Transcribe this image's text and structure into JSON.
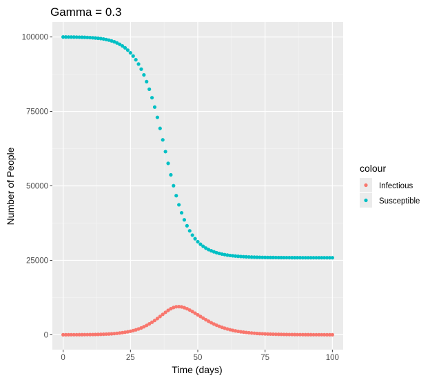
{
  "chart_data": {
    "type": "scatter",
    "title": "Gamma = 0.3",
    "xlabel": "Time (days)",
    "ylabel": "Number of People",
    "xlim": [
      -4,
      104
    ],
    "ylim": [
      -5000,
      105000
    ],
    "x_ticks": [
      0,
      25,
      50,
      75,
      100
    ],
    "y_ticks": [
      0,
      25000,
      50000,
      75000,
      100000
    ],
    "x_tick_labels": [
      "0",
      "25",
      "50",
      "75",
      "100"
    ],
    "y_tick_labels": [
      "0",
      "25000",
      "50000",
      "75000",
      "100000"
    ],
    "grid": true,
    "legend": {
      "title": "colour",
      "position": "right",
      "entries": [
        "Infectious",
        "Susceptible"
      ]
    },
    "series": [
      {
        "name": "Infectious",
        "color": "#f8766d",
        "x": [
          0,
          1,
          2,
          3,
          4,
          5,
          6,
          7,
          8,
          9,
          10,
          11,
          12,
          13,
          14,
          15,
          16,
          17,
          18,
          19,
          20,
          21,
          22,
          23,
          24,
          25,
          26,
          27,
          28,
          29,
          30,
          31,
          32,
          33,
          34,
          35,
          36,
          37,
          38,
          39,
          40,
          41,
          42,
          43,
          44,
          45,
          46,
          47,
          48,
          49,
          50,
          51,
          52,
          53,
          54,
          55,
          56,
          57,
          58,
          59,
          60,
          61,
          62,
          63,
          64,
          65,
          66,
          67,
          68,
          69,
          70,
          71,
          72,
          73,
          74,
          75,
          76,
          77,
          78,
          79,
          80,
          81,
          82,
          83,
          84,
          85,
          86,
          87,
          88,
          89,
          90,
          91,
          92,
          93,
          94,
          95,
          96,
          97,
          98,
          99,
          100
        ],
        "y": [
          10,
          12,
          14,
          17,
          20,
          25,
          30,
          37,
          45,
          55,
          67,
          82,
          100,
          122,
          149,
          182,
          222,
          270,
          330,
          400,
          485,
          585,
          700,
          840,
          1000,
          1180,
          1400,
          1650,
          1950,
          2300,
          2700,
          3150,
          3650,
          4200,
          4800,
          5450,
          6150,
          6850,
          7550,
          8200,
          8750,
          9150,
          9400,
          9450,
          9350,
          9100,
          8750,
          8300,
          7800,
          7250,
          6700,
          6150,
          5600,
          5050,
          4550,
          4050,
          3600,
          3200,
          2830,
          2500,
          2200,
          1940,
          1700,
          1490,
          1310,
          1150,
          1000,
          880,
          770,
          670,
          585,
          510,
          445,
          390,
          340,
          295,
          258,
          225,
          196,
          171,
          149,
          130,
          113,
          99,
          86,
          75,
          65,
          57,
          50,
          43,
          38,
          33,
          29,
          25,
          22,
          19,
          17,
          15,
          13,
          11,
          10
        ]
      },
      {
        "name": "Susceptible",
        "color": "#00bfc4",
        "x": [
          0,
          1,
          2,
          3,
          4,
          5,
          6,
          7,
          8,
          9,
          10,
          11,
          12,
          13,
          14,
          15,
          16,
          17,
          18,
          19,
          20,
          21,
          22,
          23,
          24,
          25,
          26,
          27,
          28,
          29,
          30,
          31,
          32,
          33,
          34,
          35,
          36,
          37,
          38,
          39,
          40,
          41,
          42,
          43,
          44,
          45,
          46,
          47,
          48,
          49,
          50,
          51,
          52,
          53,
          54,
          55,
          56,
          57,
          58,
          59,
          60,
          61,
          62,
          63,
          64,
          65,
          66,
          67,
          68,
          69,
          70,
          71,
          72,
          73,
          74,
          75,
          76,
          77,
          78,
          79,
          80,
          81,
          82,
          83,
          84,
          85,
          86,
          87,
          88,
          89,
          90,
          91,
          92,
          93,
          94,
          95,
          96,
          97,
          98,
          99,
          100
        ],
        "y": [
          99990,
          99985,
          99978,
          99970,
          99960,
          99945,
          99925,
          99900,
          99870,
          99830,
          99780,
          99720,
          99650,
          99560,
          99450,
          99310,
          99140,
          98930,
          98680,
          98370,
          97990,
          97540,
          97000,
          96350,
          95580,
          94670,
          93600,
          92350,
          90900,
          89200,
          87250,
          85000,
          82450,
          79600,
          76450,
          73000,
          69300,
          65450,
          61500,
          57550,
          53700,
          50050,
          46700,
          43650,
          40950,
          38600,
          36600,
          34900,
          33450,
          32250,
          31250,
          30400,
          29700,
          29100,
          28600,
          28200,
          27850,
          27550,
          27300,
          27090,
          26910,
          26760,
          26630,
          26520,
          26430,
          26350,
          26280,
          26220,
          26170,
          26130,
          26090,
          26060,
          26030,
          26010,
          25990,
          25970,
          25960,
          25950,
          25940,
          25930,
          25920,
          25910,
          25905,
          25900,
          25895,
          25890,
          25886,
          25883,
          25880,
          25878,
          25876,
          25874,
          25872,
          25871,
          25870,
          25869,
          25868,
          25867,
          25866,
          25865,
          25865
        ]
      }
    ]
  }
}
